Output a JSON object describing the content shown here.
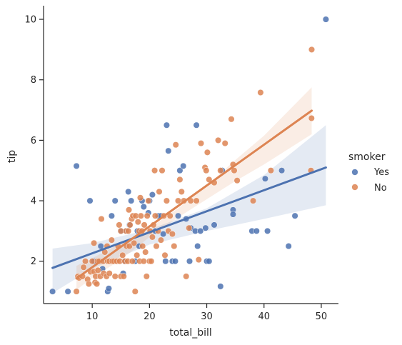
{
  "chart_data": {
    "type": "scatter",
    "xlabel": "total_bill",
    "ylabel": "tip",
    "xlim": [
      1.5,
      53.0
    ],
    "ylim": [
      0.6,
      10.45
    ],
    "xticks": [
      10,
      20,
      30,
      40,
      50
    ],
    "yticks": [
      2,
      4,
      6,
      8,
      10
    ],
    "grid": false,
    "legend": {
      "title": "smoker",
      "placement": "right",
      "entries": [
        "Yes",
        "No"
      ]
    },
    "colors": {
      "Yes": "#4c72b0",
      "No": "#dd8452"
    },
    "series": [
      {
        "name": "Yes",
        "regression": {
          "x0": 3.07,
          "y0": 1.78,
          "x1": 50.81,
          "y1": 5.1
        },
        "ci_band": {
          "x": [
            3.07,
            10,
            20,
            30,
            40,
            50.81
          ],
          "lower": [
            0.95,
            1.75,
            2.55,
            3.0,
            3.4,
            3.85
          ],
          "upper": [
            2.42,
            2.6,
            3.05,
            3.75,
            4.85,
            6.5
          ]
        },
        "points": [
          [
            3.07,
            1.0
          ],
          [
            5.75,
            1.0
          ],
          [
            7.25,
            5.15
          ],
          [
            9.6,
            4.0
          ],
          [
            10.3,
            2.0
          ],
          [
            11.5,
            2.5
          ],
          [
            11.8,
            1.75
          ],
          [
            12.7,
            1.0
          ],
          [
            12.9,
            1.1
          ],
          [
            13.4,
            3.5
          ],
          [
            14.0,
            4.0
          ],
          [
            15.0,
            3.0
          ],
          [
            15.4,
            1.6
          ],
          [
            15.7,
            2.0
          ],
          [
            16.0,
            3.0
          ],
          [
            16.3,
            4.3
          ],
          [
            16.5,
            3.2
          ],
          [
            16.8,
            4.0
          ],
          [
            17.5,
            2.0
          ],
          [
            17.9,
            3.0
          ],
          [
            18.2,
            2.5
          ],
          [
            18.7,
            4.0
          ],
          [
            19.0,
            3.8
          ],
          [
            19.8,
            3.6
          ],
          [
            20.0,
            4.0
          ],
          [
            20.5,
            4.2
          ],
          [
            21.0,
            3.0
          ],
          [
            21.5,
            3.5
          ],
          [
            22.0,
            3.5
          ],
          [
            22.4,
            2.9
          ],
          [
            22.8,
            2.0
          ],
          [
            23.0,
            6.5
          ],
          [
            23.3,
            5.65
          ],
          [
            24.0,
            2.0
          ],
          [
            24.5,
            2.0
          ],
          [
            25.0,
            3.5
          ],
          [
            25.3,
            5.0
          ],
          [
            25.9,
            5.15
          ],
          [
            26.4,
            3.4
          ],
          [
            27.0,
            2.0
          ],
          [
            27.2,
            3.1
          ],
          [
            28.0,
            3.0
          ],
          [
            28.2,
            6.5
          ],
          [
            28.4,
            2.5
          ],
          [
            28.9,
            3.0
          ],
          [
            29.8,
            3.1
          ],
          [
            30.0,
            2.0
          ],
          [
            30.4,
            2.0
          ],
          [
            31.3,
            3.2
          ],
          [
            32.4,
            1.17
          ],
          [
            32.7,
            5.0
          ],
          [
            34.6,
            3.7
          ],
          [
            34.6,
            3.55
          ],
          [
            37.9,
            3.0
          ],
          [
            38.7,
            3.0
          ],
          [
            40.2,
            4.73
          ],
          [
            40.6,
            3.0
          ],
          [
            43.1,
            5.0
          ],
          [
            44.3,
            2.5
          ],
          [
            45.4,
            3.5
          ],
          [
            50.81,
            10.0
          ]
        ]
      },
      {
        "name": "No",
        "regression": {
          "x0": 7.25,
          "y0": 1.43,
          "x1": 48.33,
          "y1": 6.98
        },
        "ci_band": {
          "x": [
            7.25,
            10,
            15,
            20,
            25,
            30,
            35,
            40,
            48.33
          ],
          "lower": [
            1.05,
            1.45,
            2.05,
            2.8,
            3.45,
            4.05,
            4.65,
            5.2,
            6.2
          ],
          "upper": [
            1.85,
            2.1,
            2.6,
            3.1,
            3.75,
            4.5,
            5.35,
            6.15,
            7.75
          ]
        },
        "points": [
          [
            7.25,
            1.0
          ],
          [
            7.5,
            1.5
          ],
          [
            7.7,
            1.45
          ],
          [
            8.3,
            1.5
          ],
          [
            8.5,
            1.8
          ],
          [
            8.8,
            2.0
          ],
          [
            9.2,
            1.4
          ],
          [
            9.4,
            1.25
          ],
          [
            9.7,
            1.65
          ],
          [
            10.0,
            2.0
          ],
          [
            10.3,
            1.66
          ],
          [
            10.3,
            2.6
          ],
          [
            10.5,
            1.3
          ],
          [
            10.6,
            1.5
          ],
          [
            10.8,
            1.25
          ],
          [
            10.9,
            2.0
          ],
          [
            11.0,
            1.7
          ],
          [
            11.2,
            2.0
          ],
          [
            11.4,
            1.5
          ],
          [
            11.6,
            3.4
          ],
          [
            11.9,
            2.0
          ],
          [
            12.0,
            1.6
          ],
          [
            12.2,
            2.3
          ],
          [
            12.5,
            1.5
          ],
          [
            12.6,
            2.5
          ],
          [
            12.7,
            2.0
          ],
          [
            13.0,
            1.6
          ],
          [
            13.0,
            2.0
          ],
          [
            13.4,
            2.7
          ],
          [
            13.5,
            2.0
          ],
          [
            13.8,
            2.0
          ],
          [
            14.0,
            1.5
          ],
          [
            14.3,
            2.0
          ],
          [
            14.5,
            2.5
          ],
          [
            14.7,
            3.2
          ],
          [
            14.8,
            2.0
          ],
          [
            15.0,
            3.0
          ],
          [
            15.0,
            1.5
          ],
          [
            15.3,
            2.2
          ],
          [
            15.5,
            1.5
          ],
          [
            15.7,
            2.0
          ],
          [
            15.9,
            3.0
          ],
          [
            16.0,
            2.5
          ],
          [
            16.2,
            2.0
          ],
          [
            16.3,
            3.0
          ],
          [
            16.4,
            3.7
          ],
          [
            16.5,
            2.5
          ],
          [
            16.6,
            3.2
          ],
          [
            16.9,
            3.4
          ],
          [
            17.0,
            2.0
          ],
          [
            17.1,
            3.5
          ],
          [
            17.3,
            2.6
          ],
          [
            17.5,
            1.0
          ],
          [
            17.6,
            3.5
          ],
          [
            17.8,
            2.2
          ],
          [
            18.0,
            3.3
          ],
          [
            18.2,
            3.0
          ],
          [
            18.3,
            2.0
          ],
          [
            18.4,
            4.1
          ],
          [
            18.5,
            3.5
          ],
          [
            18.7,
            3.0
          ],
          [
            18.8,
            2.5
          ],
          [
            19.0,
            2.0
          ],
          [
            19.1,
            3.2
          ],
          [
            19.3,
            2.3
          ],
          [
            19.5,
            1.5
          ],
          [
            19.6,
            3.5
          ],
          [
            19.8,
            4.0
          ],
          [
            20.0,
            2.0
          ],
          [
            20.1,
            3.0
          ],
          [
            20.3,
            2.0
          ],
          [
            20.5,
            2.8
          ],
          [
            20.7,
            3.2
          ],
          [
            20.9,
            5.0
          ],
          [
            21.0,
            3.5
          ],
          [
            21.2,
            2.5
          ],
          [
            21.5,
            3.0
          ],
          [
            21.7,
            4.3
          ],
          [
            22.0,
            2.7
          ],
          [
            22.2,
            5.0
          ],
          [
            22.5,
            3.5
          ],
          [
            22.7,
            2.2
          ],
          [
            23.0,
            4.0
          ],
          [
            23.3,
            3.0
          ],
          [
            23.6,
            3.5
          ],
          [
            24.0,
            2.9
          ],
          [
            24.3,
            2.5
          ],
          [
            24.6,
            5.85
          ],
          [
            25.0,
            4.0
          ],
          [
            25.3,
            4.7
          ],
          [
            25.6,
            4.3
          ],
          [
            26.0,
            4.0
          ],
          [
            26.4,
            1.5
          ],
          [
            26.9,
            3.1
          ],
          [
            27.2,
            4.0
          ],
          [
            28.2,
            4.0
          ],
          [
            28.6,
            2.05
          ],
          [
            29.0,
            5.9
          ],
          [
            29.7,
            5.1
          ],
          [
            29.9,
            5.0
          ],
          [
            30.1,
            5.6
          ],
          [
            30.4,
            4.7
          ],
          [
            31.3,
            4.6
          ],
          [
            32.0,
            6.0
          ],
          [
            32.4,
            5.0
          ],
          [
            33.2,
            5.9
          ],
          [
            34.3,
            6.7
          ],
          [
            34.6,
            5.2
          ],
          [
            34.8,
            5.0
          ],
          [
            35.3,
            4.67
          ],
          [
            38.1,
            4.0
          ],
          [
            39.4,
            7.58
          ],
          [
            41.2,
            5.0
          ],
          [
            48.2,
            5.0
          ],
          [
            48.3,
            6.73
          ],
          [
            48.33,
            9.0
          ]
        ]
      }
    ]
  }
}
